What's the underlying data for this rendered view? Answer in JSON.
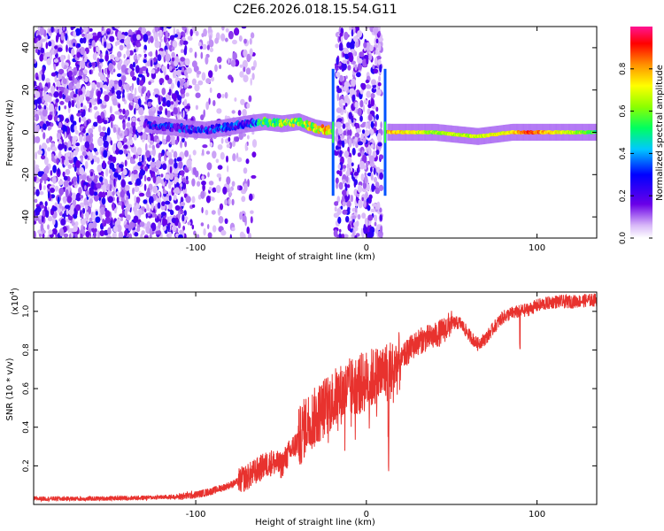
{
  "title": "C2E6.2026.018.15.54.G11",
  "colors": {
    "snr_line": "#e8322e",
    "axis": "#000000",
    "scatter": "#6a00e8"
  },
  "chart_data": [
    {
      "type": "heatmap",
      "name": "spectrogram",
      "xlabel": "Height of straight line (km)",
      "ylabel": "Frequency (Hz)",
      "xlim": [
        -195,
        135
      ],
      "ylim": [
        -50,
        50
      ],
      "xticks": [
        -100,
        0,
        100
      ],
      "xtick_labels": [
        "-100",
        "0",
        "100"
      ],
      "yticks": [
        -40,
        -20,
        0,
        20,
        40
      ],
      "ytick_labels": [
        "-40",
        "-20",
        "0",
        "20",
        "40"
      ],
      "colorbar": {
        "label": "Normalized spectral amplitude",
        "range": [
          0,
          1
        ],
        "ticks": [
          0.0,
          0.2,
          0.4,
          0.6,
          0.8
        ],
        "tick_labels": [
          "0.0",
          "0.2",
          "0.4",
          "0.6",
          "0.8"
        ]
      },
      "noise_regions": [
        {
          "x_from": -195,
          "x_to": -105,
          "density": "dense"
        },
        {
          "x_from": -105,
          "x_to": -65,
          "density": "sparse"
        },
        {
          "x_from": -18,
          "x_to": 9,
          "density": "dense"
        }
      ],
      "ridge": [
        {
          "x": -130,
          "freq": 4,
          "amp": 0.35
        },
        {
          "x": -110,
          "freq": 2,
          "amp": 0.4
        },
        {
          "x": -95,
          "freq": 1,
          "amp": 0.45
        },
        {
          "x": -85,
          "freq": 2,
          "amp": 0.45
        },
        {
          "x": -70,
          "freq": 4,
          "amp": 0.4
        },
        {
          "x": -60,
          "freq": 5,
          "amp": 0.65
        },
        {
          "x": -50,
          "freq": 4,
          "amp": 0.75
        },
        {
          "x": -40,
          "freq": 5,
          "amp": 0.8
        },
        {
          "x": -30,
          "freq": 2,
          "amp": 0.85
        },
        {
          "x": -23,
          "freq": 1,
          "amp": 0.9
        },
        {
          "x": 15,
          "freq": 0,
          "amp": 0.85
        },
        {
          "x": 40,
          "freq": 0,
          "amp": 0.7
        },
        {
          "x": 65,
          "freq": -2,
          "amp": 0.75
        },
        {
          "x": 85,
          "freq": 0,
          "amp": 0.8
        },
        {
          "x": 95,
          "freq": 0,
          "amp": 0.95
        },
        {
          "x": 135,
          "freq": 0,
          "amp": 0.6
        }
      ]
    },
    {
      "type": "line",
      "name": "snr",
      "xlabel": "Height of straight line (km)",
      "ylabel": "SNR (10 * v/v)",
      "y_scale_label": "(x10",
      "y_scale_exponent": "4",
      "xlim": [
        -195,
        135
      ],
      "ylim": [
        0,
        1.1
      ],
      "xticks": [
        -100,
        0,
        100
      ],
      "xtick_labels": [
        "-100",
        "0",
        "100"
      ],
      "yticks": [
        0.2,
        0.4,
        0.6,
        0.8,
        1.0
      ],
      "ytick_labels": [
        "0.2",
        "0.4",
        "0.6",
        "0.8",
        "1.0"
      ],
      "series": [
        {
          "name": "SNR",
          "x": [
            -195,
            -160,
            -130,
            -110,
            -100,
            -90,
            -80,
            -70,
            -60,
            -55,
            -50,
            -45,
            -40,
            -35,
            -30,
            -25,
            -20,
            -15,
            -10,
            -5,
            0,
            5,
            10,
            15,
            20,
            25,
            30,
            35,
            40,
            45,
            50,
            55,
            60,
            65,
            70,
            75,
            80,
            85,
            90,
            95,
            100,
            110,
            120,
            135
          ],
          "values": [
            0.03,
            0.03,
            0.035,
            0.04,
            0.05,
            0.07,
            0.1,
            0.14,
            0.2,
            0.22,
            0.2,
            0.27,
            0.33,
            0.42,
            0.45,
            0.5,
            0.54,
            0.57,
            0.6,
            0.62,
            0.64,
            0.66,
            0.68,
            0.7,
            0.74,
            0.8,
            0.84,
            0.86,
            0.87,
            0.9,
            0.94,
            0.94,
            0.88,
            0.83,
            0.86,
            0.92,
            0.97,
            0.99,
            1.0,
            1.01,
            1.03,
            1.05,
            1.05,
            1.06
          ]
        }
      ]
    }
  ]
}
